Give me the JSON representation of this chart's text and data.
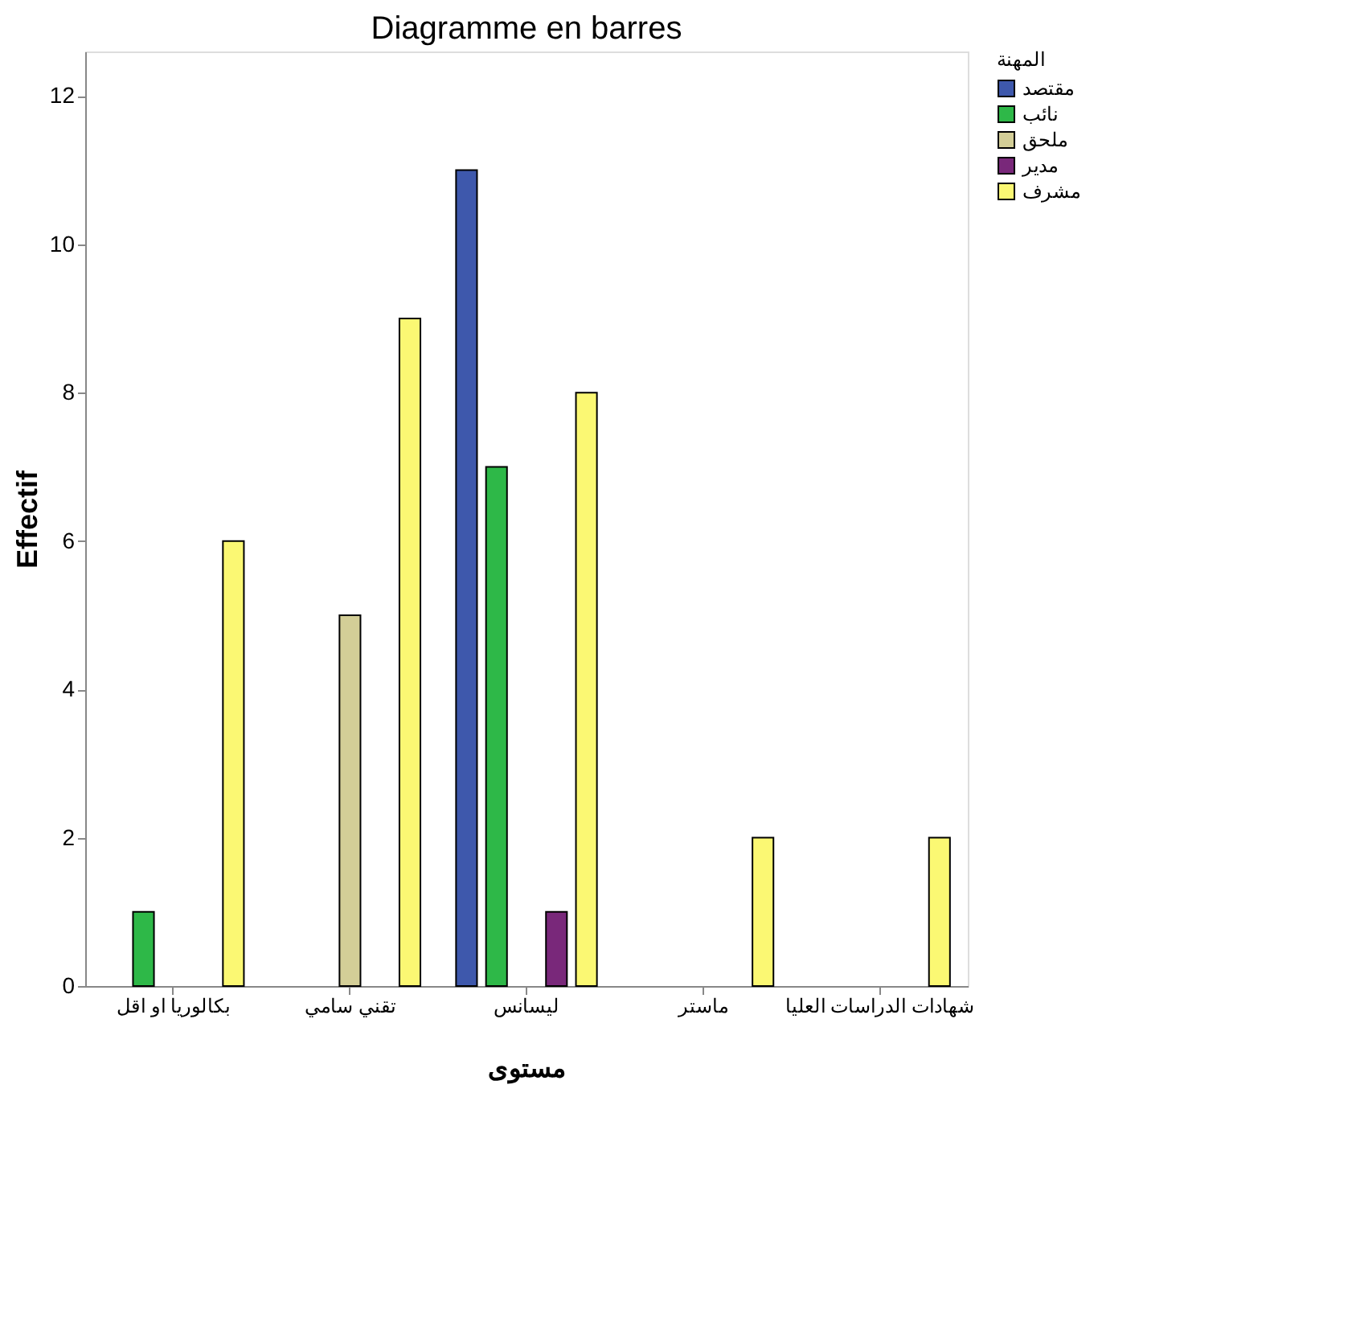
{
  "chart_data": {
    "type": "bar",
    "title": "Diagramme en barres",
    "xlabel": "مستوى",
    "ylabel": "Effectif",
    "legend_title": "المهنة",
    "categories": [
      "بكالوريا او اقل",
      "تقني سامي",
      "ليسانس",
      "ماستر",
      "شهادات الدراسات العليا"
    ],
    "series": [
      {
        "name": "مقتصد",
        "color": "#3e58ac",
        "values": [
          null,
          null,
          11,
          null,
          null
        ]
      },
      {
        "name": "نائب",
        "color": "#2eb848",
        "values": [
          1,
          null,
          7,
          null,
          null
        ]
      },
      {
        "name": "ملحق",
        "color": "#d3ce97",
        "values": [
          null,
          5,
          null,
          null,
          null
        ]
      },
      {
        "name": "مدير",
        "color": "#79287a",
        "values": [
          null,
          null,
          1,
          null,
          null
        ]
      },
      {
        "name": "مشرف",
        "color": "#fbf873",
        "values": [
          6,
          9,
          8,
          2,
          2
        ]
      }
    ],
    "ylim": [
      0,
      12.6
    ],
    "yticks": [
      0,
      2,
      4,
      6,
      8,
      10,
      12
    ],
    "grid": false,
    "legend": "right"
  }
}
